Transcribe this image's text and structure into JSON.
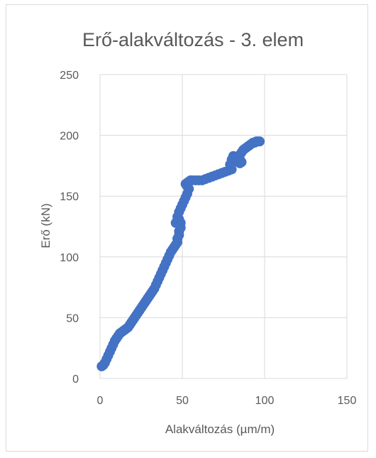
{
  "chart_data": {
    "type": "scatter",
    "title": "Erő-alakváltozás - 3. elem",
    "xlabel": "Alakváltozás (µm/m)",
    "ylabel": "Erő (kN)",
    "xlim": [
      0,
      150
    ],
    "ylim": [
      0,
      250
    ],
    "xticks": [
      0,
      50,
      100,
      150
    ],
    "yticks": [
      0,
      50,
      100,
      150,
      200,
      250
    ],
    "grid": true,
    "legend": "none",
    "marker_color": "#4472c4",
    "series": [
      {
        "x": [
          1,
          2,
          3,
          4,
          5,
          6,
          7,
          8,
          9,
          10,
          11,
          12,
          13,
          14,
          15,
          16,
          17,
          18,
          19,
          20,
          21,
          22,
          23,
          24,
          25,
          26,
          27,
          28,
          29,
          30,
          31,
          32,
          33,
          34,
          35,
          36,
          37,
          38,
          39,
          40,
          41,
          42,
          43,
          44,
          45,
          46,
          47,
          47,
          48,
          48,
          49,
          49,
          48,
          47,
          46,
          47,
          48,
          49,
          50,
          51,
          52,
          53,
          54,
          53,
          52,
          53,
          54,
          55,
          56,
          58,
          60,
          62,
          64,
          66,
          68,
          70,
          72,
          74,
          76,
          78,
          80,
          79,
          80,
          81,
          82,
          83,
          84,
          85,
          86,
          85,
          84,
          85,
          86,
          87,
          88,
          89,
          90,
          91,
          92,
          93,
          94,
          95,
          96,
          97
        ],
        "y": [
          10,
          11,
          13,
          16,
          19,
          22,
          25,
          28,
          31,
          33,
          35,
          37,
          38,
          39,
          40,
          41,
          42,
          44,
          46,
          48,
          50,
          52,
          54,
          56,
          58,
          60,
          62,
          64,
          66,
          68,
          70,
          72,
          74,
          77,
          80,
          83,
          86,
          89,
          92,
          95,
          98,
          101,
          104,
          106,
          108,
          110,
          112,
          115,
          118,
          121,
          124,
          128,
          131,
          130,
          128,
          133,
          137,
          140,
          143,
          146,
          149,
          152,
          156,
          158,
          160,
          161,
          162,
          163,
          163,
          163,
          163,
          163,
          164,
          165,
          166,
          167,
          168,
          169,
          170,
          171,
          172,
          176,
          180,
          183,
          182,
          180,
          178,
          177,
          178,
          180,
          182,
          184,
          186,
          188,
          189,
          190,
          191,
          192,
          193,
          194,
          194,
          195,
          195,
          195
        ]
      }
    ]
  }
}
